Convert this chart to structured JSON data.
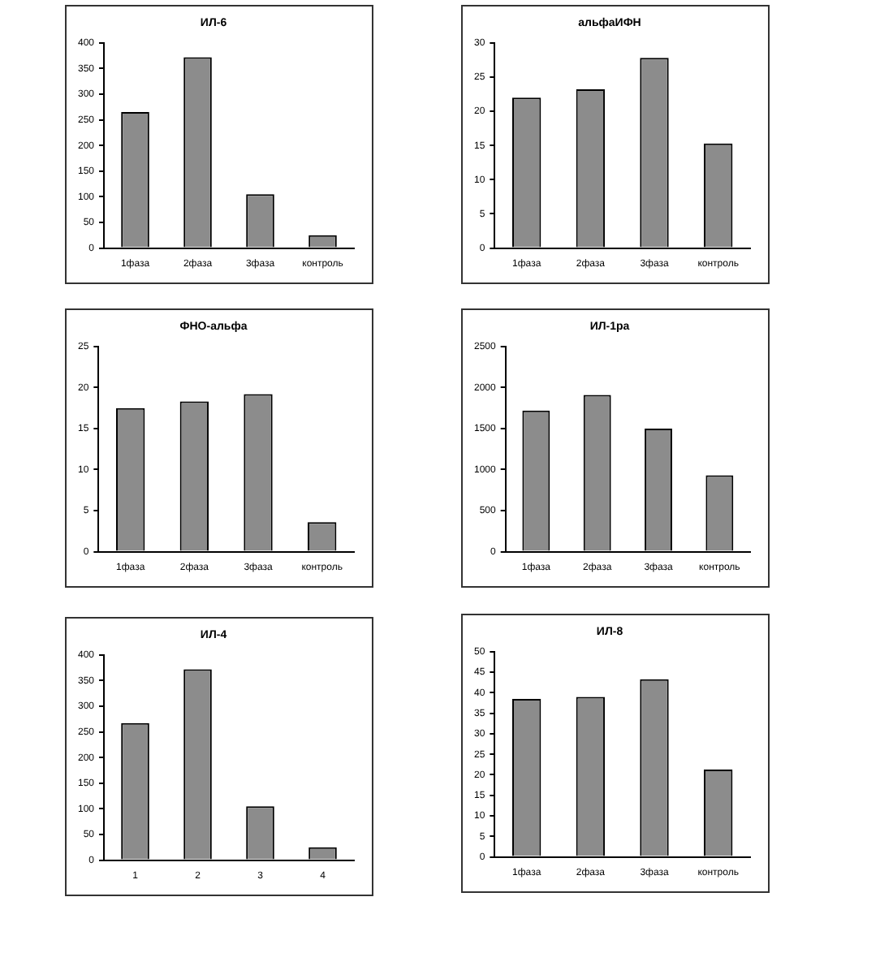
{
  "chart_data": [
    {
      "type": "bar",
      "title": "ИЛ-6",
      "categories": [
        "1фаза",
        "2фаза",
        "3фаза",
        "контроль"
      ],
      "values": [
        265,
        372,
        105,
        25
      ],
      "color": "#8c8c8c",
      "ylim": [
        0,
        400
      ],
      "yticks": [
        0,
        50,
        100,
        150,
        200,
        250,
        300,
        350,
        400
      ],
      "grid": false,
      "legend": false
    },
    {
      "type": "bar",
      "title": "альфаИФН",
      "categories": [
        "1фаза",
        "2фаза",
        "3фаза",
        "контроль"
      ],
      "values": [
        22,
        23.2,
        27.8,
        15.3
      ],
      "color": "#8c8c8c",
      "ylim": [
        0,
        30
      ],
      "yticks": [
        0,
        5,
        10,
        15,
        20,
        25,
        30
      ],
      "grid": false,
      "legend": false
    },
    {
      "type": "bar",
      "title": "ФНО-альфа",
      "categories": [
        "1фаза",
        "2фаза",
        "3фаза",
        "контроль"
      ],
      "values": [
        17.5,
        18.3,
        19.2,
        3.6
      ],
      "color": "#8c8c8c",
      "ylim": [
        0,
        25
      ],
      "yticks": [
        0,
        5,
        10,
        15,
        20,
        25
      ],
      "grid": false,
      "legend": false
    },
    {
      "type": "bar",
      "title": "ИЛ-1ра",
      "categories": [
        "1фаза",
        "2фаза",
        "3фаза",
        "контроль"
      ],
      "values": [
        1720,
        1910,
        1500,
        930
      ],
      "color": "#8c8c8c",
      "ylim": [
        0,
        2500
      ],
      "yticks": [
        0,
        500,
        1000,
        1500,
        2000,
        2500
      ],
      "grid": false,
      "legend": false
    },
    {
      "type": "bar",
      "title": "ИЛ-4",
      "categories": [
        "1",
        "2",
        "3",
        "4"
      ],
      "values": [
        267,
        372,
        105,
        25
      ],
      "color": "#8c8c8c",
      "ylim": [
        0,
        400
      ],
      "yticks": [
        0,
        50,
        100,
        150,
        200,
        250,
        300,
        350,
        400
      ],
      "grid": false,
      "legend": false
    },
    {
      "type": "bar",
      "title": "ИЛ-8",
      "categories": [
        "1фаза",
        "2фаза",
        "3фаза",
        "контроль"
      ],
      "values": [
        38.5,
        39,
        43.3,
        21.3
      ],
      "color": "#8c8c8c",
      "ylim": [
        0,
        50
      ],
      "yticks": [
        0,
        5,
        10,
        15,
        20,
        25,
        30,
        35,
        40,
        45,
        50
      ],
      "grid": false,
      "legend": false
    }
  ]
}
